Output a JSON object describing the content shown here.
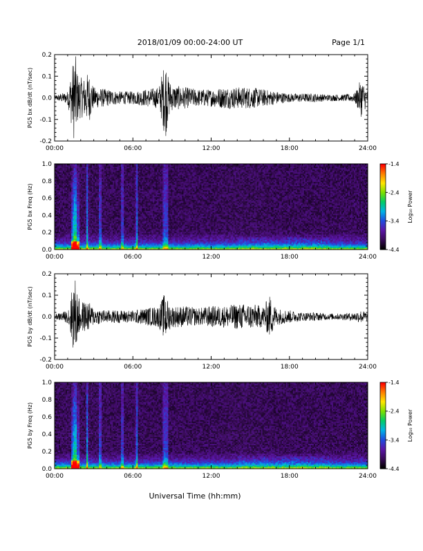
{
  "header": {
    "date_range": "2018/01/09  00:00-24:00 UT",
    "page": "Page 1/1"
  },
  "footer": {
    "xlabel": "Universal Time (hh:mm)"
  },
  "colorbar": {
    "label": "Log₁₀ Power",
    "ticks": [
      "-1.4",
      "-2.4",
      "-3.4",
      "-4.4"
    ],
    "colors": [
      "#000000",
      "#3a0a5a",
      "#5b16a8",
      "#1f4de0",
      "#00b3e6",
      "#00cc66",
      "#7be000",
      "#ffe600",
      "#ff8000",
      "#ff0000"
    ]
  },
  "colors": {
    "trace": "#000000",
    "background": "#ffffff"
  },
  "chart_data": [
    {
      "type": "line",
      "ylabel": "PG5 bx dB/dt (nT/sec)",
      "xlim_hours": [
        0,
        24
      ],
      "ylim": [
        -0.2,
        0.2
      ],
      "xticks": [
        "00:00",
        "06:00",
        "12:00",
        "18:00",
        "24:00"
      ],
      "yticks": [
        "0.2",
        "0.1",
        "0.0",
        "-0.1",
        "-0.2"
      ],
      "envelope": {
        "hours": [
          0,
          1,
          1.5,
          1.6,
          1.8,
          2.2,
          2.6,
          3,
          4,
          5,
          6,
          7,
          8,
          8.5,
          8.7,
          9,
          10,
          11,
          12,
          13,
          14,
          15,
          16,
          17,
          18,
          19,
          20,
          21,
          22,
          23,
          23.5,
          24
        ],
        "amplitude": [
          0.01,
          0.03,
          0.2,
          0.2,
          0.1,
          0.09,
          0.12,
          0.05,
          0.04,
          0.03,
          0.03,
          0.04,
          0.05,
          0.19,
          0.1,
          0.06,
          0.05,
          0.04,
          0.04,
          0.05,
          0.05,
          0.05,
          0.04,
          0.03,
          0.02,
          0.02,
          0.02,
          0.015,
          0.015,
          0.02,
          0.09,
          0.03
        ]
      }
    },
    {
      "type": "heatmap",
      "ylabel": "PG5 bx Freq (Hz)",
      "xlim_hours": [
        0,
        24
      ],
      "ylim": [
        0.0,
        1.0
      ],
      "zlim": [
        -4.4,
        -1.4
      ],
      "xticks": [
        "00:00",
        "06:00",
        "12:00",
        "18:00",
        "24:00"
      ],
      "yticks": [
        "1.0",
        "0.8",
        "0.6",
        "0.4",
        "0.2",
        "0.0"
      ],
      "vertical_streaks_hours": [
        1.5,
        1.6,
        2.5,
        3.5,
        5.2,
        6.3,
        8.4,
        8.6
      ]
    },
    {
      "type": "line",
      "ylabel": "PG5 by dB/dt (nT/sec)",
      "xlim_hours": [
        0,
        24
      ],
      "ylim": [
        -0.2,
        0.2
      ],
      "xticks": [
        "00:00",
        "06:00",
        "12:00",
        "18:00",
        "24:00"
      ],
      "yticks": [
        "0.2",
        "0.1",
        "0.0",
        "-0.1",
        "-0.2"
      ],
      "envelope": {
        "hours": [
          0,
          1,
          1.5,
          1.6,
          1.8,
          2.2,
          2.6,
          3,
          4,
          5,
          6,
          7,
          8,
          8.5,
          8.7,
          9,
          10,
          11,
          12,
          13,
          14,
          15,
          16,
          16.5,
          17,
          18,
          19,
          20,
          21,
          22,
          23,
          23.5,
          24
        ],
        "amplitude": [
          0.01,
          0.03,
          0.18,
          0.18,
          0.09,
          0.07,
          0.07,
          0.04,
          0.03,
          0.03,
          0.03,
          0.04,
          0.05,
          0.12,
          0.07,
          0.05,
          0.05,
          0.04,
          0.05,
          0.05,
          0.06,
          0.06,
          0.05,
          0.1,
          0.04,
          0.03,
          0.02,
          0.02,
          0.015,
          0.015,
          0.02,
          0.03,
          0.02
        ]
      }
    },
    {
      "type": "heatmap",
      "ylabel": "PG5 by Freq (Hz)",
      "xlim_hours": [
        0,
        24
      ],
      "ylim": [
        0.0,
        1.0
      ],
      "zlim": [
        -4.4,
        -1.4
      ],
      "xticks": [
        "00:00",
        "06:00",
        "12:00",
        "18:00",
        "24:00"
      ],
      "yticks": [
        "1.0",
        "0.8",
        "0.6",
        "0.4",
        "0.2",
        "0.0"
      ],
      "vertical_streaks_hours": [
        1.5,
        1.6,
        2.5,
        3.5,
        5.2,
        6.3,
        8.4,
        8.6
      ]
    }
  ]
}
